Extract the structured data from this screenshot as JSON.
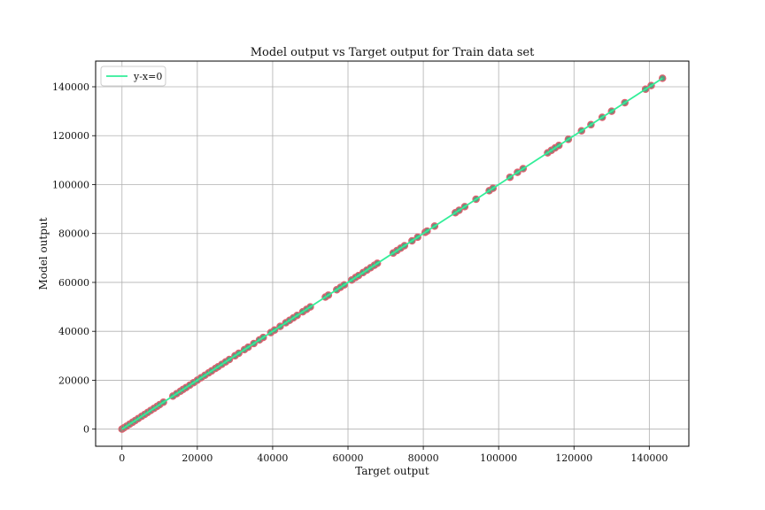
{
  "chart_data": {
    "type": "scatter",
    "title": "Model output vs Target output for Train data set",
    "xlabel": "Target output",
    "ylabel": "Model output",
    "xlim": [
      -7000,
      150500
    ],
    "ylim": [
      -7000,
      150500
    ],
    "xticks": [
      0,
      20000,
      40000,
      60000,
      80000,
      100000,
      120000,
      140000
    ],
    "yticks": [
      0,
      20000,
      40000,
      60000,
      80000,
      100000,
      120000,
      140000
    ],
    "grid": true,
    "legend_placement": "top-left",
    "series": [
      {
        "name": "y-x=0",
        "kind": "line",
        "color": "#33ee99",
        "x": [
          0,
          143500
        ],
        "y": [
          0,
          143500
        ]
      },
      {
        "kind": "scatter",
        "edge_color": "#e06070",
        "face_color": "#5a9e7e",
        "x": [
          0,
          500,
          1200,
          2000,
          2800,
          3500,
          4300,
          5200,
          6000,
          6800,
          7600,
          8500,
          9300,
          10000,
          11000,
          13500,
          14500,
          15500,
          16200,
          17000,
          18000,
          19000,
          20000,
          21000,
          22000,
          23000,
          23800,
          24800,
          25500,
          26500,
          27500,
          28500,
          30000,
          31000,
          32500,
          33500,
          35000,
          36500,
          37500,
          39500,
          40500,
          42000,
          43500,
          44500,
          45500,
          46500,
          48000,
          49000,
          50000,
          54000,
          54800,
          57000,
          58000,
          59000,
          61000,
          62000,
          62800,
          64000,
          65000,
          66000,
          67000,
          67800,
          72000,
          73000,
          74000,
          75000,
          77000,
          78500,
          80500,
          81000,
          83000,
          88500,
          89500,
          91000,
          94000,
          97500,
          98500,
          103000,
          105000,
          106500,
          113000,
          114000,
          115000,
          116000,
          118500,
          122000,
          124500,
          127500,
          130000,
          133500,
          139000,
          140500,
          143500
        ],
        "y": [
          0,
          500,
          1200,
          2000,
          2800,
          3500,
          4300,
          5200,
          6000,
          6800,
          7600,
          8500,
          9300,
          10000,
          11000,
          13500,
          14500,
          15500,
          16200,
          17000,
          18000,
          19000,
          20000,
          21000,
          22000,
          23000,
          23800,
          24800,
          25500,
          26500,
          27500,
          28500,
          30000,
          31000,
          32500,
          33500,
          35000,
          36500,
          37500,
          39500,
          40500,
          42000,
          43500,
          44500,
          45500,
          46500,
          48000,
          49000,
          50000,
          54000,
          54800,
          57000,
          58000,
          59000,
          61000,
          62000,
          62800,
          64000,
          65000,
          66000,
          67000,
          67800,
          72000,
          73000,
          74000,
          75000,
          77000,
          78500,
          80500,
          81000,
          83000,
          88500,
          89500,
          91000,
          94000,
          97500,
          98500,
          103000,
          105000,
          106500,
          113000,
          114000,
          115000,
          116000,
          118500,
          122000,
          124500,
          127500,
          130000,
          133500,
          139000,
          140500,
          143500
        ]
      }
    ]
  }
}
